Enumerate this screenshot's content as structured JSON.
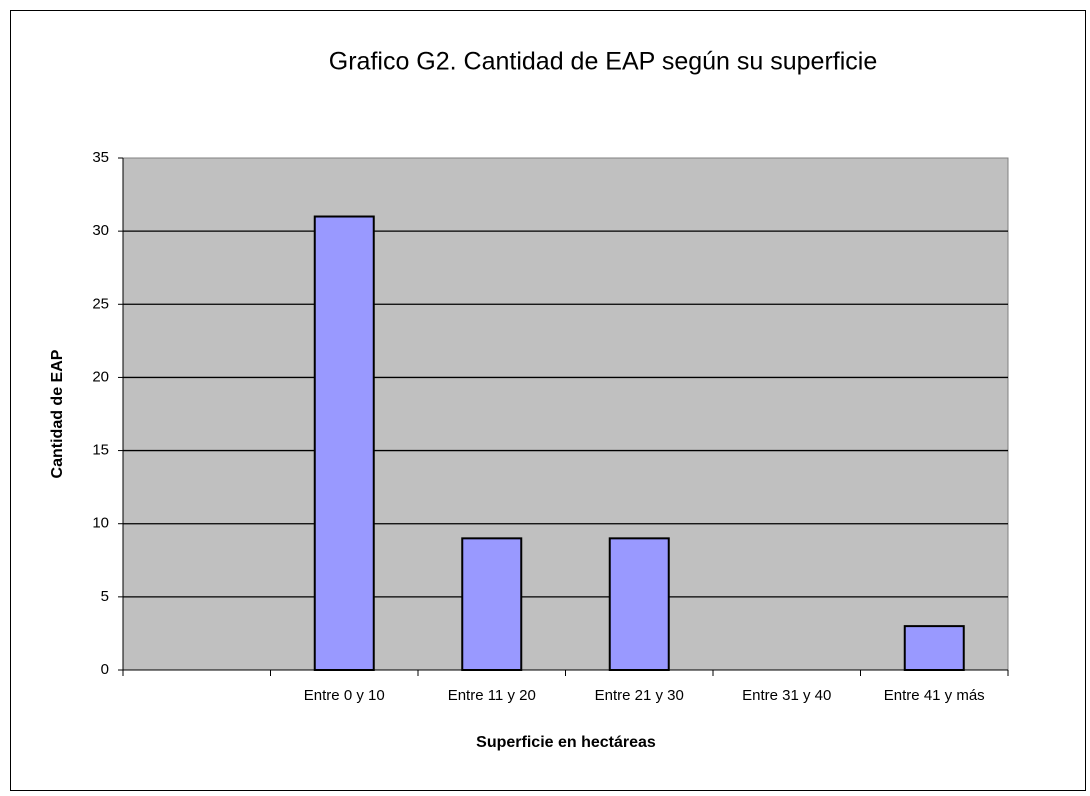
{
  "chart_data": {
    "type": "bar",
    "title": "Grafico G2. Cantidad de EAP según su superficie",
    "x_label": "Superficie en hectáreas",
    "y_label": "Cantidad de EAP",
    "categories": [
      null,
      "Entre 0 y 10",
      "Entre 11 y 20",
      "Entre 21 y 30",
      "Entre 31 y 40",
      "Entre 41 y más"
    ],
    "values": [
      null,
      31,
      9,
      9,
      0,
      3
    ],
    "color": "#9999ff",
    "ylim": [
      0,
      35
    ],
    "yticks": [
      0,
      5,
      10,
      15,
      20,
      25,
      30,
      35
    ],
    "grid": true
  }
}
